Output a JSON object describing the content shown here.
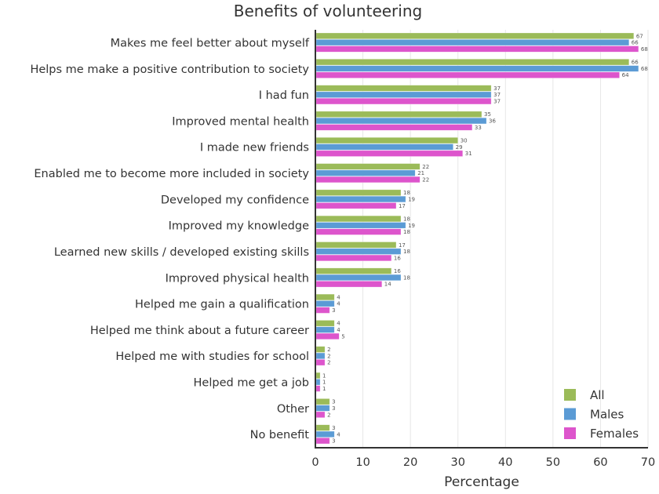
{
  "chart_data": {
    "type": "bar",
    "orientation": "horizontal",
    "title": "Benefits of volunteering",
    "xlabel": "Percentage",
    "ylabel": "",
    "xlim": [
      0,
      70
    ],
    "xticks": [
      0,
      10,
      20,
      30,
      40,
      50,
      60,
      70
    ],
    "grid": true,
    "legend_position": "bottom-right",
    "categories": [
      "Makes me feel better about myself",
      "Helps me make a positive contribution to society",
      "I had fun",
      "Improved mental health",
      "I made new friends",
      "Enabled me to become more included in society",
      "Developed my confidence",
      "Improved my knowledge",
      "Learned new skills / developed existing skills",
      "Improved physical health",
      "Helped me gain a qualification",
      "Helped me think about a future career",
      "Helped me with studies for school",
      "Helped me get a job",
      "Other",
      "No benefit"
    ],
    "series": [
      {
        "name": "All",
        "color": "#9bbb59",
        "values": [
          67,
          66,
          37,
          35,
          30,
          22,
          18,
          18,
          17,
          16,
          4,
          4,
          2,
          1,
          3,
          3
        ]
      },
      {
        "name": "Males",
        "color": "#5b9bd5",
        "values": [
          66,
          68,
          37,
          36,
          29,
          21,
          19,
          19,
          18,
          18,
          4,
          4,
          2,
          1,
          3,
          4
        ]
      },
      {
        "name": "Females",
        "color": "#dd55cc",
        "values": [
          68,
          64,
          37,
          33,
          31,
          22,
          17,
          18,
          16,
          14,
          3,
          5,
          2,
          1,
          2,
          3
        ]
      }
    ]
  }
}
